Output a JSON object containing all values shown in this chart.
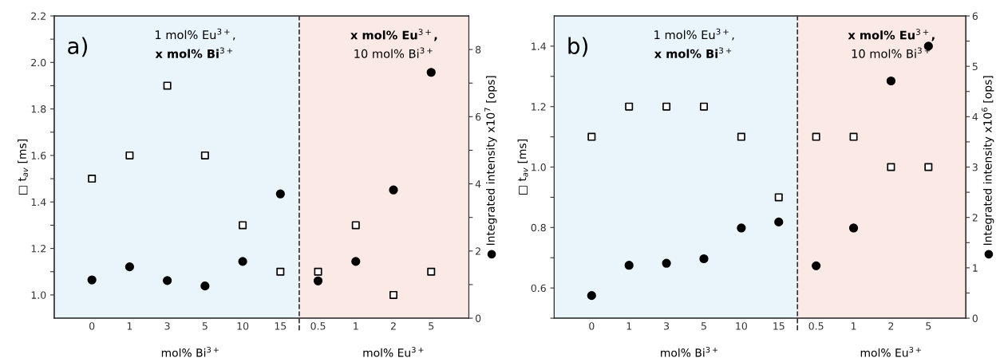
{
  "chart_data": [
    {
      "type": "scatter",
      "categories": [
        "0",
        "1",
        "3",
        "5",
        "10",
        "15",
        "0.5",
        "1",
        "2",
        "5"
      ],
      "xlabel": "mol% Bi$^{3+}$",
      "ylabel": "□ t$_{av}$ [ms]",
      "y2label": "● Integrated intensity x10$^{7}$ [ops]",
      "ylim": [
        0.9,
        2.2
      ],
      "yticks": [
        {
          "value": 1.0,
          "label": "1.0"
        },
        {
          "value": 1.1,
          "label": null
        },
        {
          "value": 1.2,
          "label": "1.2"
        },
        {
          "value": 1.3,
          "label": null
        },
        {
          "value": 1.4,
          "label": "1.4"
        },
        {
          "value": 1.5,
          "label": null
        },
        {
          "value": 1.6,
          "label": "1.6"
        },
        {
          "value": 1.7,
          "label": null
        },
        {
          "value": 1.8,
          "label": "1.8"
        },
        {
          "value": 1.9,
          "label": null
        },
        {
          "value": 2.0,
          "label": "2.0"
        },
        {
          "value": 2.1,
          "label": null
        },
        {
          "value": 2.2,
          "label": "2.2"
        }
      ],
      "y2lim": [
        0,
        9
      ],
      "y2ticks": [
        0,
        {
          "value": 1,
          "label": null
        },
        2,
        {
          "value": 3,
          "label": null
        },
        4,
        {
          "value": 5,
          "label": null
        },
        6,
        {
          "value": 7,
          "label": null
        },
        8
      ],
      "series": [
        {
          "color": "#000000",
          "marker": "square",
          "values": [
            1.5,
            1.6,
            1.9,
            1.6,
            1.3,
            1.1,
            1.1,
            1.3,
            1.0,
            1.1
          ]
        },
        {
          "color": "#000000",
          "marker": "circle",
          "axis": "y2",
          "values": [
            1.14,
            1.53,
            1.12,
            0.96,
            1.69,
            3.7,
            1.11,
            1.69,
            3.82,
            7.32
          ]
        }
      ],
      "annotations": [
        "a)",
        "1 mol% Eu$^{3+}$,",
        "x mol% Bi$^{3+}$",
        "x mol% Eu$^{3+}$,",
        "10 mol% Bi$^{3+}$",
        "mol% Eu$^{3+}$"
      ],
      "grid": false,
      "legend": false
    },
    {
      "type": "scatter",
      "categories": [
        "0",
        "1",
        "3",
        "5",
        "10",
        "15",
        "0.5",
        "1",
        "2",
        "5"
      ],
      "xlabel": "mol% Bi$^{3+}$",
      "ylabel": "□ t$_{av}$ [ms]",
      "y2label": "● Integrated intensity x10$^{6}$ [ops]",
      "ylim": [
        0.5,
        1.5
      ],
      "yticks": [
        {
          "value": 0.5,
          "label": null
        },
        {
          "value": 0.6,
          "label": "0.6"
        },
        {
          "value": 0.7,
          "label": null
        },
        {
          "value": 0.8,
          "label": "0.8"
        },
        {
          "value": 0.9,
          "label": null
        },
        {
          "value": 1.0,
          "label": "1.0"
        },
        {
          "value": 1.1,
          "label": null
        },
        {
          "value": 1.2,
          "label": "1.2"
        },
        {
          "value": 1.3,
          "label": null
        },
        {
          "value": 1.4,
          "label": "1.4"
        }
      ],
      "y2lim": [
        0,
        6
      ],
      "y2ticks": [
        0,
        {
          "value": 0.5,
          "label": null
        },
        1,
        {
          "value": 1.5,
          "label": null
        },
        2,
        {
          "value": 2.5,
          "label": null
        },
        3,
        {
          "value": 3.5,
          "label": null
        },
        4,
        {
          "value": 4.5,
          "label": null
        },
        5,
        {
          "value": 5.5,
          "label": null
        },
        6
      ],
      "series": [
        {
          "color": "#000000",
          "marker": "square",
          "values": [
            1.1,
            1.2,
            1.2,
            1.2,
            1.1,
            0.9,
            1.1,
            1.1,
            1.0,
            1.0
          ]
        },
        {
          "color": "#000000",
          "marker": "circle",
          "axis": "y2",
          "values": [
            0.45,
            1.05,
            1.09,
            1.18,
            1.79,
            1.91,
            1.04,
            1.79,
            4.71,
            5.4
          ]
        }
      ],
      "annotations": [
        "b)",
        "1 mol% Eu$^{3+}$,",
        "x mol% Bi$^{3+}$",
        "x mol% Eu$^{3+}$,",
        "10 mol% Bi$^{3+}$",
        "mol% Eu$^{3+}$"
      ],
      "grid": false,
      "legend": false
    }
  ]
}
